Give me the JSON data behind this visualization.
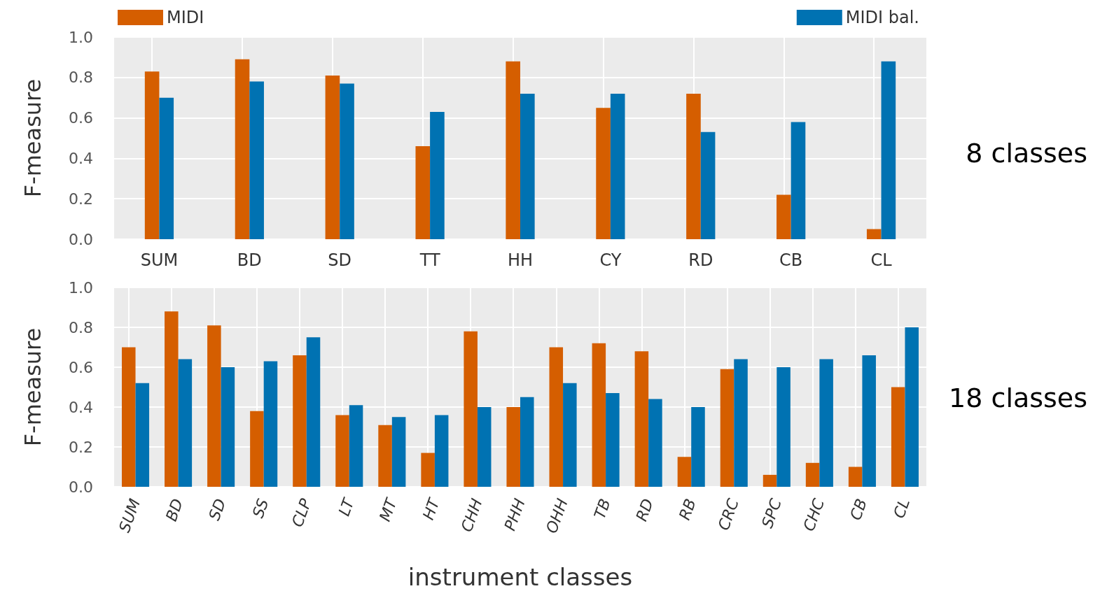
{
  "chart_data": [
    {
      "type": "bar",
      "ylabel": "F-measure",
      "categories": [
        "SUM",
        "BD",
        "SD",
        "TT",
        "HH",
        "CY",
        "RD",
        "CB",
        "CL"
      ],
      "series": [
        {
          "name": "MIDI",
          "color": "#d55e00",
          "values": [
            0.83,
            0.89,
            0.81,
            0.46,
            0.88,
            0.65,
            0.72,
            0.22,
            0.05
          ]
        },
        {
          "name": "MIDI bal.",
          "color": "#0072b2",
          "values": [
            0.7,
            0.78,
            0.77,
            0.63,
            0.72,
            0.72,
            0.53,
            0.58,
            0.88
          ]
        }
      ],
      "ylim": [
        0,
        1
      ],
      "yticks": [
        {
          "value": 0,
          "label": "0.0"
        },
        {
          "value": 0.2,
          "label": "0.2"
        },
        {
          "value": 0.4,
          "label": "0.4"
        },
        {
          "value": 0.6,
          "label": "0.6"
        },
        {
          "value": 0.8,
          "label": "0.8"
        },
        {
          "value": 1,
          "label": "1.0"
        }
      ],
      "grid": true,
      "legend": "top",
      "annotations": [
        "8 classes"
      ]
    },
    {
      "type": "bar",
      "ylabel": "F-measure",
      "xlabel": "instrument classes",
      "categories": [
        "SUM",
        "BD",
        "SD",
        "SS",
        "CLP",
        "LT",
        "MT",
        "HT",
        "CHH",
        "PHH",
        "OHH",
        "TB",
        "RD",
        "RB",
        "CRC",
        "SPC",
        "CHC",
        "CB",
        "CL"
      ],
      "series": [
        {
          "color": "#d55e00",
          "values": [
            0.7,
            0.88,
            0.81,
            0.38,
            0.66,
            0.36,
            0.31,
            0.17,
            0.78,
            0.4,
            0.7,
            0.72,
            0.68,
            0.15,
            0.59,
            0.06,
            0.12,
            0.1,
            0.5
          ]
        },
        {
          "color": "#0072b2",
          "values": [
            0.52,
            0.64,
            0.6,
            0.63,
            0.75,
            0.41,
            0.35,
            0.36,
            0.4,
            0.45,
            0.52,
            0.47,
            0.44,
            0.4,
            0.64,
            0.6,
            0.64,
            0.66,
            0.8
          ]
        }
      ],
      "ylim": [
        0,
        1
      ],
      "yticks": [
        {
          "value": 0,
          "label": "0.0"
        },
        {
          "value": 0.2,
          "label": "0.2"
        },
        {
          "value": 0.4,
          "label": "0.4"
        },
        {
          "value": 0.6,
          "label": "0.6"
        },
        {
          "value": 0.8,
          "label": "0.8"
        },
        {
          "value": 1,
          "label": "1.0"
        }
      ],
      "grid": true,
      "annotations": [
        "18 classes"
      ]
    }
  ]
}
